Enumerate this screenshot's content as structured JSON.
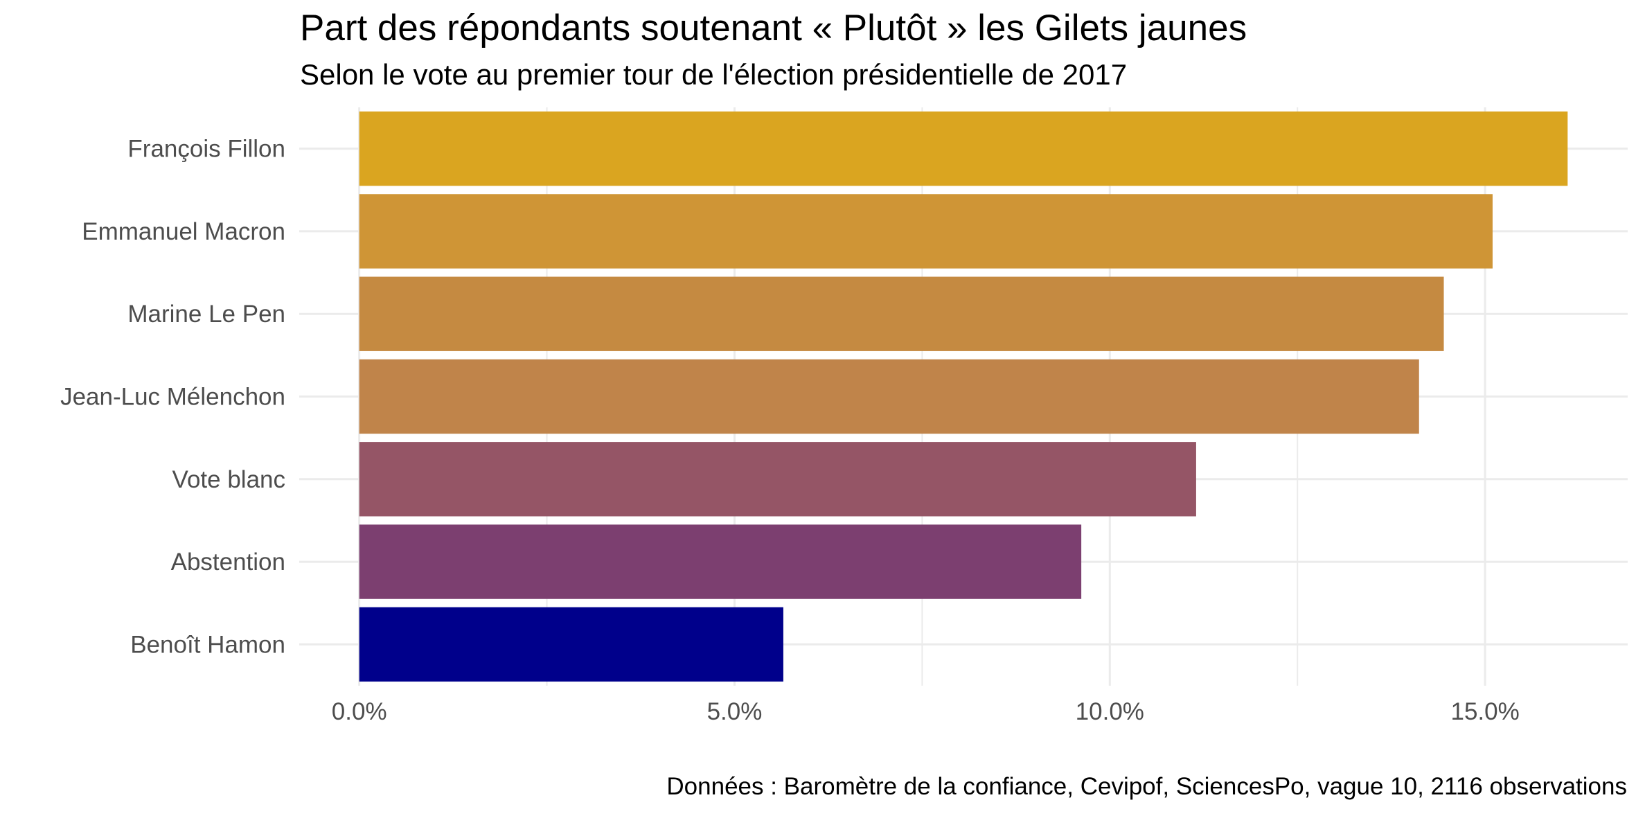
{
  "chart_data": {
    "type": "bar",
    "orientation": "horizontal",
    "title": "Part des répondants soutenant « Plutôt » les Gilets jaunes",
    "subtitle": "Selon le vote au premier tour de l'élection présidentielle de 2017",
    "caption": "Données : Baromètre de la confiance, Cevipof, SciencesPo, vague 10, 2116 observations",
    "xlabel": "",
    "ylabel": "",
    "categories": [
      "François Fillon",
      "Emmanuel Macron",
      "Marine Le Pen",
      "Jean-Luc Mélenchon",
      "Vote blanc",
      "Abstention",
      "Benoît Hamon"
    ],
    "values": [
      16.1,
      15.1,
      14.45,
      14.12,
      11.15,
      9.62,
      5.65
    ],
    "colors": [
      "#DAA520",
      "#CF9536",
      "#C58A41",
      "#C0844A",
      "#955566",
      "#7C3F70",
      "#00008B"
    ],
    "xlim": [
      -0.8,
      16.9
    ],
    "x_ticks": [
      {
        "value": 0,
        "label": "0.0%"
      },
      {
        "value": 5,
        "label": "5.0%"
      },
      {
        "value": 10,
        "label": "10.0%"
      },
      {
        "value": 15,
        "label": "15.0%"
      }
    ],
    "x_minor_ticks": [
      2.5,
      7.5,
      12.5
    ],
    "grid": true,
    "legend": "none",
    "panel_background": "#ffffff",
    "grid_color": "#ebebeb",
    "tick_label_color": "#4d4d4d"
  }
}
